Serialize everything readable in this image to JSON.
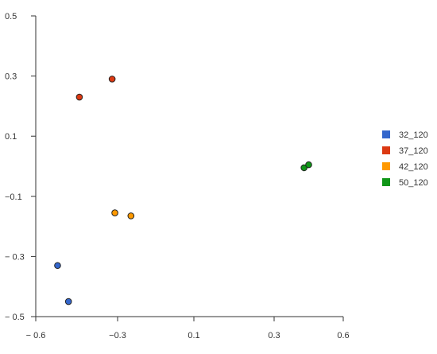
{
  "chart_data": {
    "type": "scatter",
    "title": "",
    "xlabel": "",
    "ylabel": "",
    "xlim": [
      -0.6,
      0.6
    ],
    "ylim": [
      -0.5,
      0.5
    ],
    "x_ticks": [
      -0.6,
      -0.3,
      0.1,
      0.3,
      0.6
    ],
    "x_tick_labels": [
      "− 0.6",
      "−0.3",
      "0.1",
      "0.3",
      "0.6"
    ],
    "y_ticks": [
      0.5,
      0.3,
      0.1,
      -0.1,
      -0.3,
      -0.5
    ],
    "y_tick_labels": [
      "0.5",
      "0.3",
      "0.1",
      "−0.1",
      "− 0.3",
      "− 0.5"
    ],
    "grid": false,
    "legend_position": "right",
    "series": [
      {
        "name": "32_120",
        "color": "#3366CC",
        "points": [
          [
            -0.52,
            -0.33
          ],
          [
            -0.48,
            -0.45
          ]
        ]
      },
      {
        "name": "37_120",
        "color": "#DC3912",
        "points": [
          [
            -0.44,
            0.23
          ],
          [
            -0.32,
            0.29
          ]
        ]
      },
      {
        "name": "42_120",
        "color": "#FF9900",
        "points": [
          [
            -0.31,
            -0.155
          ],
          [
            -0.23,
            -0.165
          ]
        ]
      },
      {
        "name": "50_120",
        "color": "#109618",
        "points": [
          [
            0.43,
            -0.005
          ],
          [
            0.45,
            0.005
          ]
        ]
      }
    ]
  }
}
